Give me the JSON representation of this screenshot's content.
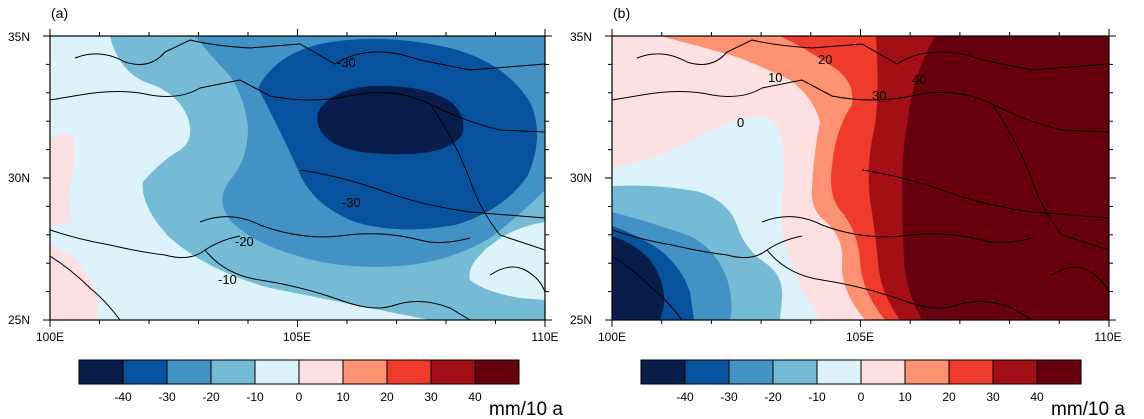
{
  "colors": [
    "#081d4a",
    "#08519c",
    "#4292c6",
    "#75bbd5",
    "#dcf3fb",
    "#fde0e2",
    "#fc9272",
    "#ee3b2c",
    "#a30f15",
    "#67000d"
  ],
  "chart_data": [
    {
      "type": "contour-map",
      "panel_label": "(a)",
      "xlim": [
        100,
        110
      ],
      "ylim": [
        25,
        35
      ],
      "x_ticks": [
        "100E",
        "105E",
        "110E"
      ],
      "y_ticks": [
        "25N",
        "30N",
        "35N"
      ],
      "contour_labels": [
        "-30",
        "-30",
        "-20",
        "-10"
      ],
      "legend": {
        "levels": [
          "-40",
          "-30",
          "-20",
          "-10",
          "0",
          "10",
          "20",
          "30",
          "40"
        ],
        "unit": "mm/10 a"
      },
      "regions": [
        {
          "level": "-20 to -10",
          "extent": "broad band across west-centre and south"
        },
        {
          "level": "-30 to -20",
          "extent": "north-centre to east"
        },
        {
          "level": "-40 to -30",
          "extent": "around 104–109E, 29–35N"
        },
        {
          "level": "< -40",
          "extent": "core near 106–108E, 31–33N"
        },
        {
          "level": "-10 to 0",
          "extent": "west, far southwest, south edge and southeast pocket"
        },
        {
          "level": "0 to 10",
          "extent": "small areas at the western edge"
        }
      ]
    },
    {
      "type": "contour-map",
      "panel_label": "(b)",
      "xlim": [
        100,
        110
      ],
      "ylim": [
        25,
        35
      ],
      "x_ticks": [
        "100E",
        "105E",
        "110E"
      ],
      "y_ticks": [
        "25N",
        "30N",
        "35N"
      ],
      "contour_labels": [
        "20",
        "10",
        "30",
        "40",
        "0"
      ],
      "legend": {
        "levels": [
          "-40",
          "-30",
          "-20",
          "-10",
          "0",
          "10",
          "20",
          "30",
          "40"
        ],
        "unit": "mm/10 a"
      },
      "regions": [
        {
          "level": "> 40",
          "extent": "east of about 106E"
        },
        {
          "level": "30 to 40",
          "extent": "band near 105–106E"
        },
        {
          "level": "20 to 30",
          "extent": "band near 104.5–105.5E"
        },
        {
          "level": "10 to 20",
          "extent": "band near 104–105E and north edge"
        },
        {
          "level": "0 to 10",
          "extent": "north-west and central band"
        },
        {
          "level": "-10 to 0",
          "extent": "west-centre pocket"
        },
        {
          "level": "-20 to -10",
          "extent": "south-west"
        },
        {
          "level": "< -20",
          "extent": "south-west corner, down to < -40"
        }
      ]
    }
  ]
}
